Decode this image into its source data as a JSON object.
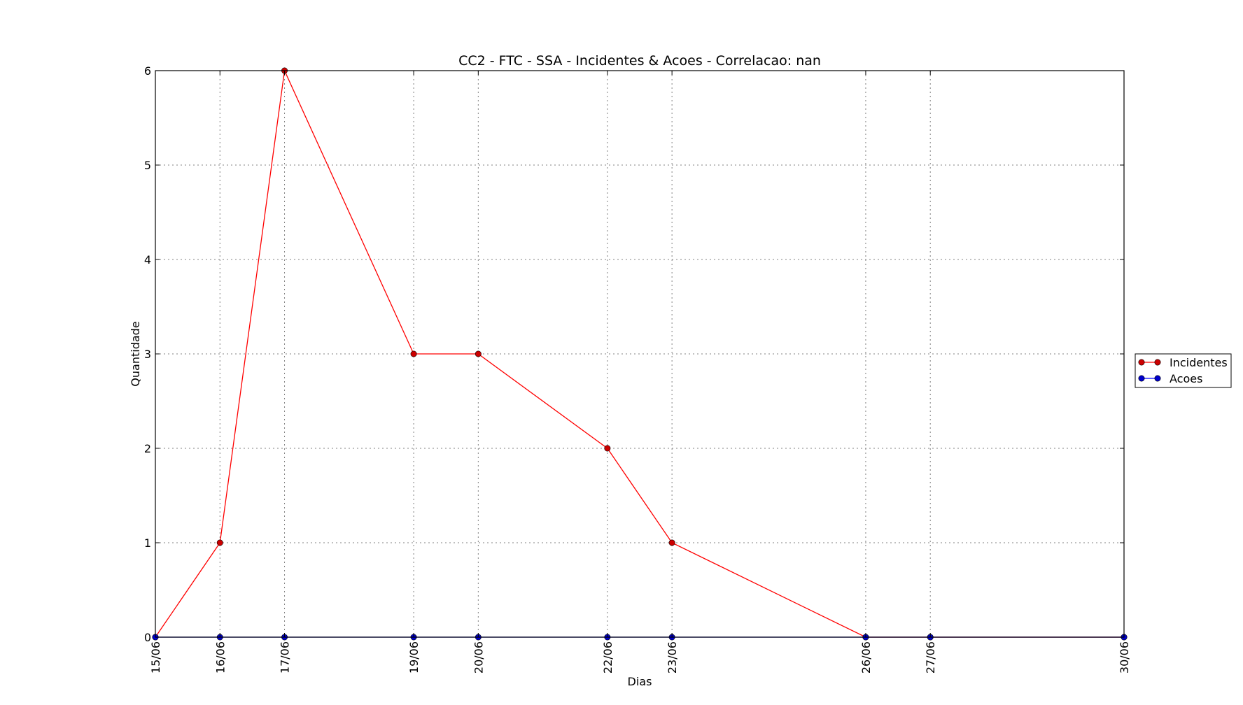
{
  "chart_data": {
    "type": "line",
    "title": "CC2 - FTC - SSA - Incidentes & Acoes - Correlacao: nan",
    "xlabel": "Dias",
    "ylabel": "Quantidade",
    "x": [
      "15/06",
      "16/06",
      "17/06",
      "19/06",
      "20/06",
      "22/06",
      "23/06",
      "26/06",
      "27/06",
      "30/06"
    ],
    "x_day_numbers": [
      15,
      16,
      17,
      19,
      20,
      22,
      23,
      26,
      27,
      30
    ],
    "xlim": [
      15,
      30
    ],
    "ylim": [
      0,
      6
    ],
    "yticks": [
      0,
      1,
      2,
      3,
      4,
      5,
      6
    ],
    "grid": true,
    "legend_position": "right-outside",
    "series": [
      {
        "name": "Incidentes",
        "color": "#ff0000",
        "marker_color": "#cc0000",
        "values": [
          0,
          1,
          6,
          3,
          3,
          2,
          1,
          0,
          0,
          0
        ]
      },
      {
        "name": "Acoes",
        "color": "#0000ff",
        "marker_color": "#0000cc",
        "values": [
          0,
          0,
          0,
          0,
          0,
          0,
          0,
          0,
          0,
          0
        ]
      }
    ]
  }
}
